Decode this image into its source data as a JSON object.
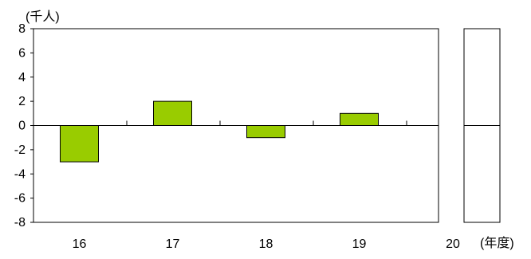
{
  "chart_data": {
    "type": "bar",
    "y_unit_label": "(千人)",
    "x_unit_label": "(年度)",
    "categories": [
      "16",
      "17",
      "18",
      "19"
    ],
    "values": [
      -3,
      2,
      -1,
      1
    ],
    "extra_category": "20",
    "ylim": [
      -8,
      8
    ],
    "y_ticks": [
      8,
      6,
      4,
      2,
      0,
      -2,
      -4,
      -6,
      -8
    ],
    "grid": false,
    "legend": "none",
    "bar_color": "#99cc00",
    "bar_stroke": "#000000"
  }
}
